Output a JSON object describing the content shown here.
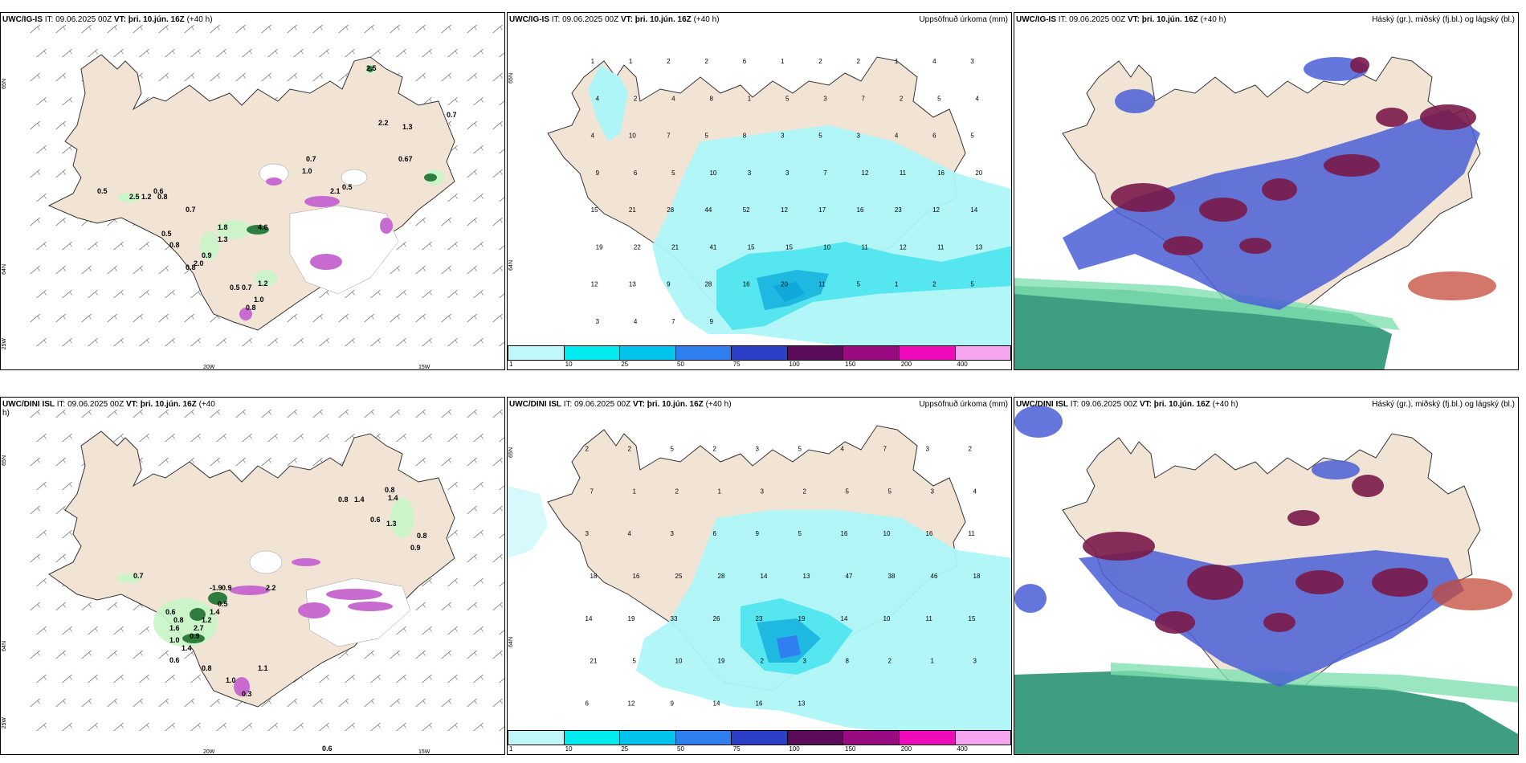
{
  "panels": {
    "p1": {
      "model": "UWC/IG-IS",
      "it_label": "IT:",
      "it": "09.06.2025 00Z",
      "vt_label": "VT:",
      "vt": "þri. 10.jún. 16Z",
      "lead": "(+40 h)",
      "legend_title": "",
      "lat_top": "65N",
      "lat_bot": "64N",
      "lat_low": "25W",
      "lon_a": "20W",
      "lon_b": "15W"
    },
    "p2": {
      "model": "UWC/IG-IS",
      "it_label": "IT:",
      "it": "09.06.2025 00Z",
      "vt_label": "VT:",
      "vt": "þri. 10.jún. 16Z",
      "lead": "(+40 h)",
      "legend_title": "Uppsöfnuð úrkoma (mm)",
      "lat_top": "65N",
      "lat_bot": "64N"
    },
    "p3": {
      "model": "UWC/IG-IS",
      "it_label": "IT:",
      "it": "09.06.2025 00Z",
      "vt_label": "VT:",
      "vt": "þri. 10.jún. 16Z",
      "lead": "(+40 h)",
      "legend_title": "Háský (gr.), miðský (fj.bl.) og lágský (bl.)"
    },
    "p4": {
      "model": "UWC/DINI ISL",
      "it_label": "IT:",
      "it": "09.06.2025 00Z",
      "vt_label": "VT:",
      "vt": "þri. 10.jún. 16Z",
      "lead": "(+40",
      "lead2": "h)",
      "legend_title": "",
      "lat_top": "65N",
      "lat_bot": "64N",
      "lat_low": "25W",
      "lon_a": "20W",
      "lon_b": "15W"
    },
    "p5": {
      "model": "UWC/DINI ISL",
      "it_label": "IT:",
      "it": "09.06.2025 00Z",
      "vt_label": "VT:",
      "vt": "þri. 10.jún. 16Z",
      "lead": "(+40 h)",
      "legend_title": "Uppsöfnuð úrkoma (mm)",
      "lat_top": "65N",
      "lat_bot": "64N"
    },
    "p6": {
      "model": "UWC/DINI ISL",
      "it_label": "IT:",
      "it": "09.06.2025 00Z",
      "vt_label": "VT:",
      "vt": "þri. 10.jún. 16Z",
      "lead": "(+40 h)",
      "legend_title": "Háský (gr.), miðský (fj.bl.) og lágský (bl.)"
    }
  },
  "colorbar": {
    "ticks": [
      "1",
      "10",
      "25",
      "50",
      "75",
      "100",
      "150",
      "200",
      "400"
    ],
    "colors": [
      "#bff7fa",
      "#00eaf0",
      "#00c4ec",
      "#2f7ff0",
      "#2b3fc8",
      "#5b0d5c",
      "#9a0a80",
      "#ef0abb",
      "#f5a4f0"
    ]
  },
  "colors": {
    "land": "#f2e4d5",
    "precip_light": "#aef5f8",
    "precip_mid": "#55e6f0",
    "precip_strong": "#1fb8e0",
    "green": "#8fe68f",
    "green_dark": "#2e7d3e",
    "magenta": "#c76bd0",
    "high_cloud": "#3f9e82",
    "mid_cloud": "#7a1a4a",
    "low_cloud": "#4a5fd6",
    "coast": "#333333"
  },
  "values": {
    "p1": [
      "2.5",
      "2.2",
      "1.3",
      "0.7",
      "0.67",
      "0.7",
      "1.0",
      "0.5",
      "0.6",
      "2.1",
      "0.5",
      "2.5",
      "1.2",
      "0.8",
      "0.7",
      "1.8",
      "1.3",
      "4.6",
      "0.5",
      "0.8",
      "0.9",
      "2.0",
      "0.8",
      "1.2",
      "0.7",
      "0.5",
      "1.0",
      "0.8"
    ],
    "p2": [
      "1",
      "1",
      "2",
      "2",
      "6",
      "1",
      "2",
      "2",
      "1",
      "4",
      "3",
      "4",
      "2",
      "4",
      "8",
      "1",
      "5",
      "3",
      "7",
      "2",
      "5",
      "4",
      "4",
      "10",
      "7",
      "5",
      "8",
      "3",
      "5",
      "3",
      "4",
      "6",
      "5",
      "9",
      "6",
      "5",
      "10",
      "3",
      "3",
      "7",
      "12",
      "11",
      "16",
      "20",
      "15",
      "21",
      "28",
      "44",
      "52",
      "12",
      "17",
      "16",
      "23",
      "12",
      "14",
      "19",
      "22",
      "21",
      "41",
      "15",
      "15",
      "10",
      "11",
      "12",
      "11",
      "13",
      "12",
      "13",
      "9",
      "28",
      "16",
      "20",
      "11",
      "5",
      "1",
      "2",
      "5",
      "3",
      "4",
      "7",
      "9"
    ],
    "p4": [
      "0.8",
      "1.4",
      "0.8",
      "1.4",
      "0.6",
      "1.3",
      "0.8",
      "0.7",
      "-1.9",
      "0.9",
      "2.2",
      "0.5",
      "1.4",
      "1.2",
      "2.7",
      "0.6",
      "0.8",
      "0.9",
      "1.6",
      "1.0",
      "1.4",
      "0.6",
      "0.8",
      "1.0",
      "1.1",
      "0.3",
      "0.6",
      "0.9"
    ],
    "p5": [
      "2",
      "2",
      "5",
      "2",
      "3",
      "5",
      "4",
      "7",
      "3",
      "2",
      "7",
      "1",
      "2",
      "1",
      "3",
      "2",
      "5",
      "5",
      "3",
      "4",
      "3",
      "4",
      "3",
      "6",
      "9",
      "5",
      "16",
      "10",
      "16",
      "11",
      "18",
      "16",
      "25",
      "28",
      "14",
      "13",
      "47",
      "38",
      "46",
      "18",
      "14",
      "19",
      "33",
      "26",
      "23",
      "19",
      "14",
      "10",
      "11",
      "15",
      "21",
      "5",
      "10",
      "19",
      "2",
      "3",
      "8",
      "2",
      "1",
      "3",
      "6",
      "12",
      "9",
      "14",
      "16",
      "13"
    ]
  }
}
